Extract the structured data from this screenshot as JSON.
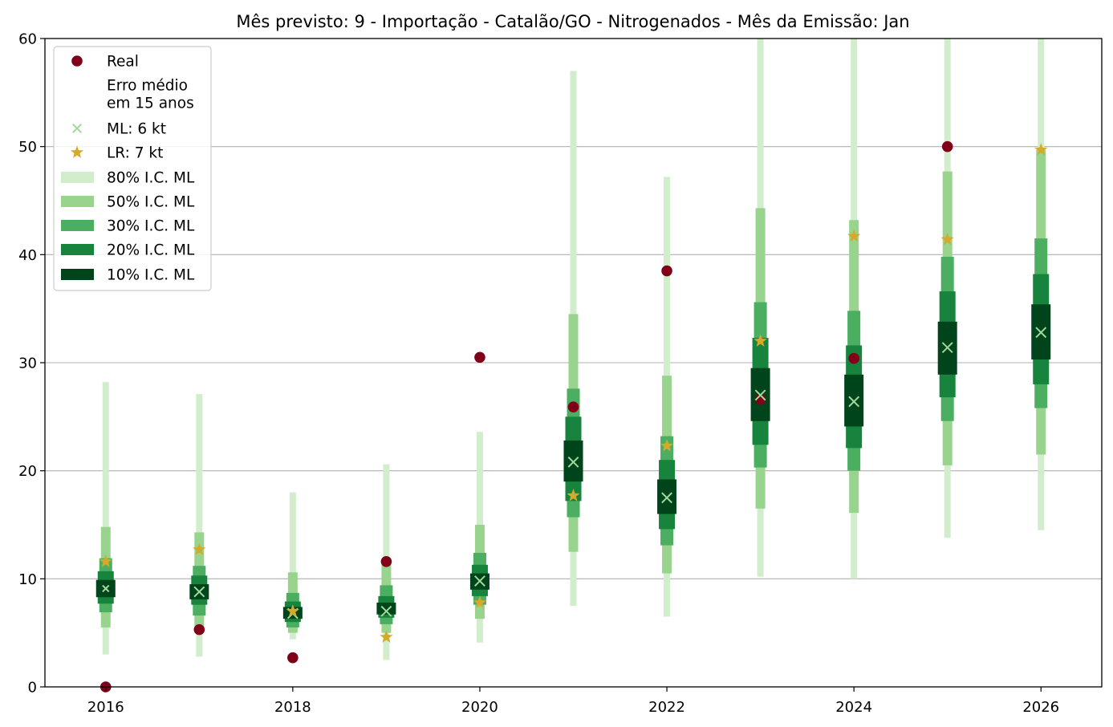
{
  "chart_data": {
    "type": "box-interval",
    "title": "Mês previsto: 9 - Importação - Catalão/GO - Nitrogenados - Mês da Emissão: Jan",
    "xlabel": "",
    "ylabel": "",
    "xlim": [
      2015.35,
      2026.65
    ],
    "ylim": [
      0,
      60
    ],
    "x_ticks": [
      2016,
      2018,
      2020,
      2022,
      2024,
      2026
    ],
    "y_ticks": [
      0,
      10,
      20,
      30,
      40,
      50,
      60
    ],
    "grid": "y",
    "legend_position": "top-left",
    "years": [
      2016,
      2017,
      2018,
      2019,
      2020,
      2021,
      2022,
      2023,
      2024,
      2025,
      2026
    ],
    "real": [
      0.0,
      5.3,
      2.7,
      11.6,
      30.5,
      25.9,
      38.5,
      26.6,
      30.4,
      50.0,
      null
    ],
    "ml": [
      9.1,
      8.8,
      6.8,
      7.0,
      9.8,
      20.8,
      17.5,
      27.0,
      26.4,
      31.4,
      32.8
    ],
    "lr": [
      11.6,
      12.7,
      7.0,
      4.6,
      7.8,
      17.7,
      22.3,
      32.0,
      41.7,
      41.4,
      49.7
    ],
    "intervals": {
      "80": [
        [
          3.0,
          28.2
        ],
        [
          2.8,
          27.1
        ],
        [
          4.4,
          18.0
        ],
        [
          2.5,
          20.6
        ],
        [
          4.1,
          23.6
        ],
        [
          7.5,
          57.0
        ],
        [
          6.5,
          47.2
        ],
        [
          10.2,
          60.0
        ],
        [
          10.0,
          60.0
        ],
        [
          13.8,
          60.0
        ],
        [
          14.5,
          60.0
        ]
      ],
      "50": [
        [
          5.5,
          14.8
        ],
        [
          5.5,
          14.3
        ],
        [
          5.0,
          10.6
        ],
        [
          5.0,
          11.4
        ],
        [
          6.3,
          15.0
        ],
        [
          12.5,
          34.5
        ],
        [
          10.5,
          28.8
        ],
        [
          16.5,
          44.3
        ],
        [
          16.1,
          43.2
        ],
        [
          20.5,
          47.7
        ],
        [
          21.5,
          49.7
        ]
      ],
      "30": [
        [
          6.9,
          11.9
        ],
        [
          6.6,
          11.2
        ],
        [
          5.5,
          8.7
        ],
        [
          5.8,
          9.4
        ],
        [
          7.6,
          12.4
        ],
        [
          15.7,
          27.6
        ],
        [
          13.1,
          23.2
        ],
        [
          20.3,
          35.6
        ],
        [
          20.0,
          34.8
        ],
        [
          24.6,
          39.8
        ],
        [
          25.8,
          41.5
        ]
      ],
      "20": [
        [
          7.7,
          10.7
        ],
        [
          7.6,
          10.3
        ],
        [
          6.0,
          7.9
        ],
        [
          6.4,
          8.4
        ],
        [
          8.4,
          11.3
        ],
        [
          17.2,
          25.0
        ],
        [
          14.6,
          21.0
        ],
        [
          22.4,
          32.3
        ],
        [
          22.1,
          31.6
        ],
        [
          26.8,
          36.6
        ],
        [
          28.0,
          38.2
        ]
      ],
      "10": [
        [
          8.3,
          9.9
        ],
        [
          8.1,
          9.5
        ],
        [
          6.3,
          7.4
        ],
        [
          6.7,
          7.8
        ],
        [
          9.0,
          10.5
        ],
        [
          19.0,
          22.8
        ],
        [
          16.0,
          19.2
        ],
        [
          24.6,
          29.5
        ],
        [
          24.1,
          28.9
        ],
        [
          28.9,
          33.8
        ],
        [
          30.3,
          35.4
        ]
      ]
    },
    "legend": [
      {
        "label": "Real",
        "marker": "circle",
        "color": "#7f0018"
      },
      {
        "label": "Erro médio",
        "marker": "none",
        "color": ""
      },
      {
        "label": "em 15 anos",
        "marker": "none",
        "color": ""
      },
      {
        "label": "ML: 6 kt",
        "marker": "x",
        "color": "#a1d99b"
      },
      {
        "label": "LR: 7 kt",
        "marker": "star",
        "color": "#d4aa2c"
      },
      {
        "label": "80% I.C. ML",
        "marker": "patch",
        "color": "#d2edcc"
      },
      {
        "label": "50% I.C. ML",
        "marker": "patch",
        "color": "#98d48e"
      },
      {
        "label": "30% I.C. ML",
        "marker": "patch",
        "color": "#4cae61"
      },
      {
        "label": "20% I.C. ML",
        "marker": "patch",
        "color": "#17833c"
      },
      {
        "label": "10% I.C. ML",
        "marker": "patch",
        "color": "#00441b"
      }
    ],
    "colors": {
      "real": "#7f0018",
      "ml": "#a1d99b",
      "lr": "#d4aa2c",
      "ci80": "#d2edcc",
      "ci50": "#98d48e",
      "ci30": "#4cae61",
      "ci20": "#17833c",
      "ci10": "#00441b",
      "grid": "#b0b0b0"
    }
  }
}
